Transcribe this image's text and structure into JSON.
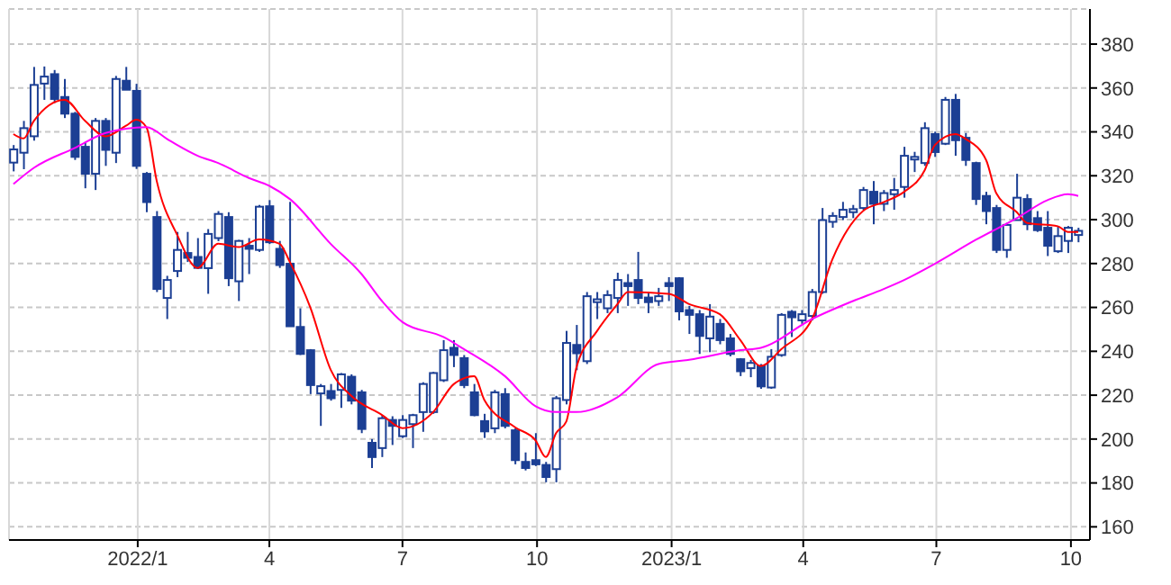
{
  "chart_data": {
    "type": "candlestick",
    "color": "#1c3f94",
    "grid": true,
    "xlim": [
      "2021-10-05",
      "2023-10-14"
    ],
    "xticks": [
      {
        "value": "2022-01-01",
        "label": "2022/1"
      },
      {
        "value": "2022-04-01",
        "label": "4"
      },
      {
        "value": "2022-07-01",
        "label": "7"
      },
      {
        "value": "2022-10-01",
        "label": "10"
      },
      {
        "value": "2023-01-01",
        "label": "2023/1"
      },
      {
        "value": "2023-04-01",
        "label": "4"
      },
      {
        "value": "2023-07-01",
        "label": "7"
      },
      {
        "value": "2023-10-01",
        "label": "10"
      }
    ],
    "ylim": [
      154,
      396
    ],
    "yticks": [
      160,
      180,
      200,
      220,
      240,
      260,
      280,
      300,
      320,
      340,
      360,
      380
    ],
    "x": [
      "2021-10-08",
      "2021-10-15",
      "2021-10-22",
      "2021-10-29",
      "2021-11-05",
      "2021-11-12",
      "2021-11-19",
      "2021-11-26",
      "2021-12-03",
      "2021-12-10",
      "2021-12-17",
      "2021-12-24",
      "2021-12-31",
      "2022-01-07",
      "2022-01-14",
      "2022-01-21",
      "2022-01-28",
      "2022-02-04",
      "2022-02-11",
      "2022-02-18",
      "2022-02-25",
      "2022-03-04",
      "2022-03-11",
      "2022-03-18",
      "2022-03-25",
      "2022-04-01",
      "2022-04-08",
      "2022-04-15",
      "2022-04-22",
      "2022-04-29",
      "2022-05-06",
      "2022-05-13",
      "2022-05-20",
      "2022-05-27",
      "2022-06-03",
      "2022-06-10",
      "2022-06-17",
      "2022-06-24",
      "2022-07-01",
      "2022-07-08",
      "2022-07-15",
      "2022-07-22",
      "2022-07-29",
      "2022-08-05",
      "2022-08-12",
      "2022-08-19",
      "2022-08-26",
      "2022-09-02",
      "2022-09-09",
      "2022-09-16",
      "2022-09-23",
      "2022-09-30",
      "2022-10-07",
      "2022-10-14",
      "2022-10-21",
      "2022-10-28",
      "2022-11-04",
      "2022-11-11",
      "2022-11-18",
      "2022-11-25",
      "2022-12-02",
      "2022-12-09",
      "2022-12-16",
      "2022-12-23",
      "2022-12-30",
      "2023-01-06",
      "2023-01-13",
      "2023-01-20",
      "2023-01-27",
      "2023-02-03",
      "2023-02-10",
      "2023-02-17",
      "2023-02-24",
      "2023-03-03",
      "2023-03-10",
      "2023-03-17",
      "2023-03-24",
      "2023-03-31",
      "2023-04-07",
      "2023-04-14",
      "2023-04-21",
      "2023-04-28",
      "2023-05-05",
      "2023-05-12",
      "2023-05-19",
      "2023-05-26",
      "2023-06-02",
      "2023-06-09",
      "2023-06-16",
      "2023-06-23",
      "2023-06-30",
      "2023-07-07",
      "2023-07-14",
      "2023-07-21",
      "2023-07-28",
      "2023-08-04",
      "2023-08-11",
      "2023-08-18",
      "2023-08-25",
      "2023-09-01",
      "2023-09-08",
      "2023-09-15",
      "2023-09-22",
      "2023-09-29",
      "2023-10-06"
    ],
    "ohlc": [
      [
        326,
        334,
        322,
        332
      ],
      [
        330.5,
        345,
        323,
        341.7
      ],
      [
        338,
        369.6,
        336,
        361.4
      ],
      [
        362,
        369.8,
        354.6,
        365.2
      ],
      [
        366.3,
        368.2,
        353.2,
        355
      ],
      [
        355.9,
        364.1,
        346.3,
        348.3
      ],
      [
        348.3,
        349.1,
        327.2,
        328.6
      ],
      [
        333.2,
        335.4,
        314.3,
        320.9
      ],
      [
        320.9,
        346.3,
        313.5,
        345
      ],
      [
        345,
        346.3,
        324.5,
        331.8
      ],
      [
        330.5,
        365.5,
        325.8,
        364.1
      ],
      [
        363.3,
        369.6,
        359.2,
        359.2
      ],
      [
        358.7,
        361.9,
        323.1,
        324.5
      ],
      [
        320.9,
        321.7,
        303.4,
        308
      ],
      [
        301.2,
        303.9,
        267,
        268.4
      ],
      [
        264.3,
        274.4,
        254.7,
        272.5
      ],
      [
        276.6,
        294.4,
        273.8,
        286.2
      ],
      [
        284.8,
        294.4,
        280.7,
        282.6
      ],
      [
        283,
        291.6,
        277.5,
        278
      ],
      [
        277.9,
        295.7,
        266.2,
        293.5
      ],
      [
        291.6,
        303.9,
        290.2,
        302.6
      ],
      [
        301.2,
        303.4,
        269.7,
        273.3
      ],
      [
        271.9,
        290.8,
        262.9,
        290.3
      ],
      [
        288.1,
        291.6,
        275.2,
        286.7
      ],
      [
        286.2,
        306.7,
        285.3,
        305.9
      ],
      [
        306.1,
        308.9,
        288.9,
        289.7
      ],
      [
        286.7,
        290.3,
        278,
        279.3
      ],
      [
        279.9,
        308.1,
        251.4,
        251.4
      ],
      [
        251.1,
        259.6,
        238.3,
        238.8
      ],
      [
        240.5,
        241,
        220.5,
        224.6
      ],
      [
        220.8,
        225.1,
        206,
        224.1
      ],
      [
        221.9,
        225.1,
        217.5,
        218.6
      ],
      [
        222.4,
        230.1,
        214.2,
        229.5
      ],
      [
        228.4,
        229.5,
        215.8,
        217.5
      ],
      [
        221.3,
        222.4,
        202.7,
        204.6
      ],
      [
        198.3,
        200,
        186.8,
        191.8
      ],
      [
        195.9,
        210.9,
        191.8,
        209.5
      ],
      [
        208.7,
        210.4,
        197.3,
        206
      ],
      [
        201.3,
        210.9,
        200.5,
        208.7
      ],
      [
        206.8,
        211.5,
        195.9,
        210.9
      ],
      [
        212.3,
        225.9,
        203.3,
        225.1
      ],
      [
        212.3,
        230.6,
        211.5,
        230.1
      ],
      [
        226.8,
        245.1,
        226,
        240.5
      ],
      [
        241.6,
        245.1,
        232.8,
        238.3
      ],
      [
        236.9,
        238.3,
        223.2,
        224.6
      ],
      [
        221.3,
        225.1,
        210.4,
        210.9
      ],
      [
        208.2,
        211.5,
        200.5,
        203.5
      ],
      [
        204.9,
        222.4,
        202.7,
        221.3
      ],
      [
        220.5,
        223.2,
        204.9,
        206
      ],
      [
        204,
        204.9,
        188.5,
        190.4
      ],
      [
        189.6,
        193.9,
        185.7,
        186.8
      ],
      [
        190.4,
        202.7,
        187.7,
        188.5
      ],
      [
        188.2,
        189.6,
        180.3,
        182.7
      ],
      [
        186.3,
        219.7,
        180.3,
        218.6
      ],
      [
        217.8,
        249.3,
        215.8,
        243.8
      ],
      [
        242.9,
        252,
        231.4,
        239.1
      ],
      [
        235.5,
        267,
        234.2,
        265.1
      ],
      [
        262.4,
        267,
        254.7,
        263.7
      ],
      [
        259.6,
        267.8,
        257.4,
        265.6
      ],
      [
        264.3,
        275.8,
        257.4,
        272.5
      ],
      [
        271.1,
        275.2,
        260.7,
        269.7
      ],
      [
        272.5,
        285.3,
        261.5,
        264.3
      ],
      [
        264.5,
        267,
        257.4,
        262.4
      ],
      [
        262.9,
        268.9,
        260.7,
        265.1
      ],
      [
        271.1,
        273.8,
        262.9,
        269.7
      ],
      [
        273.3,
        273.8,
        254.1,
        258.2
      ],
      [
        258.8,
        260.7,
        247.9,
        256.6
      ],
      [
        256.9,
        258.8,
        238.8,
        247
      ],
      [
        245.9,
        261.5,
        239.6,
        255.8
      ],
      [
        252.5,
        254.7,
        243.2,
        245.1
      ],
      [
        245.9,
        247.9,
        237.7,
        238.8
      ],
      [
        236.4,
        236.9,
        228.7,
        230.9
      ],
      [
        232.3,
        236.1,
        228.2,
        234.7
      ],
      [
        233.3,
        234.2,
        222.9,
        224
      ],
      [
        223.5,
        241,
        222.9,
        237.5
      ],
      [
        238.3,
        257.4,
        237.5,
        256.6
      ],
      [
        258,
        258.8,
        246.5,
        255.5
      ],
      [
        254.1,
        258.8,
        252.5,
        256.9
      ],
      [
        256.1,
        268.4,
        254.1,
        267
      ],
      [
        267,
        305.3,
        266.2,
        299.8
      ],
      [
        299,
        303.4,
        296.3,
        301.7
      ],
      [
        301.2,
        308.1,
        299.8,
        304.5
      ],
      [
        303.4,
        306.7,
        300.7,
        304.8
      ],
      [
        305.3,
        314.9,
        304.5,
        313.5
      ],
      [
        312.7,
        317.6,
        297.9,
        307.2
      ],
      [
        307.2,
        313.5,
        303.9,
        312.1
      ],
      [
        311.6,
        319,
        304.5,
        313.5
      ],
      [
        314.9,
        333.2,
        310,
        329.1
      ],
      [
        327.4,
        330.9,
        321.7,
        328.6
      ],
      [
        325.8,
        344.4,
        324.5,
        341.7
      ],
      [
        339,
        340.1,
        328.6,
        330.8
      ],
      [
        334.6,
        355.9,
        334,
        354.6
      ],
      [
        354.6,
        357.3,
        329.1,
        336.2
      ],
      [
        337.3,
        339.5,
        324.5,
        327.2
      ],
      [
        325.8,
        326.4,
        306.7,
        309.4
      ],
      [
        310.8,
        312.7,
        297.9,
        303.9
      ],
      [
        305.3,
        306.7,
        284.8,
        286.2
      ],
      [
        286.2,
        298.5,
        282.6,
        297.6
      ],
      [
        299.8,
        320.9,
        299.8,
        310
      ],
      [
        309.4,
        311.6,
        295.2,
        297.9
      ],
      [
        300.7,
        303.9,
        294.4,
        295.2
      ],
      [
        296.3,
        303.9,
        283.4,
        288.1
      ],
      [
        285.6,
        297.1,
        284.8,
        292.5
      ],
      [
        290.3,
        297.1,
        284.8,
        296.3
      ],
      [
        293,
        296.3,
        289.7,
        294.9
      ]
    ],
    "series": [
      {
        "type": "line",
        "color": "#ff0000",
        "x": [
          "2021-10-08",
          "2021-10-15",
          "2021-10-22",
          "2021-11-12",
          "2021-11-26",
          "2021-12-10",
          "2021-12-24",
          "2021-12-31",
          "2022-01-07",
          "2022-01-14",
          "2022-01-28",
          "2022-02-11",
          "2022-02-25",
          "2022-03-11",
          "2022-03-25",
          "2022-04-08",
          "2022-04-15",
          "2022-04-29",
          "2022-05-13",
          "2022-05-27",
          "2022-06-17",
          "2022-07-01",
          "2022-07-22",
          "2022-08-05",
          "2022-08-19",
          "2022-08-26",
          "2022-09-16",
          "2022-09-30",
          "2022-10-07",
          "2022-10-14",
          "2022-10-21",
          "2022-10-28",
          "2022-11-11",
          "2022-11-25",
          "2022-12-02",
          "2022-12-30",
          "2023-01-13",
          "2023-02-03",
          "2023-02-17",
          "2023-03-03",
          "2023-03-17",
          "2023-04-07",
          "2023-04-21",
          "2023-05-12",
          "2023-05-26",
          "2023-06-09",
          "2023-06-23",
          "2023-06-30",
          "2023-07-14",
          "2023-07-21",
          "2023-08-04",
          "2023-08-11",
          "2023-08-25",
          "2023-09-01",
          "2023-09-22",
          "2023-09-29",
          "2023-10-06"
        ],
        "values": [
          339,
          337,
          345,
          354.6,
          345,
          338,
          342.8,
          345.5,
          342,
          317.6,
          293,
          278,
          289,
          287.5,
          291,
          289,
          280.7,
          260,
          231.5,
          219.7,
          211,
          205,
          212.3,
          225,
          228.7,
          217.8,
          205.4,
          199.4,
          191.8,
          202.7,
          208,
          232.8,
          249.2,
          261.5,
          267,
          266.2,
          261.5,
          256.9,
          245.1,
          233.3,
          241,
          254.7,
          282,
          304,
          308,
          312.7,
          322.5,
          334,
          339,
          336.8,
          327.2,
          312,
          303.4,
          298.5,
          297,
          294.4,
          294.4
        ]
      },
      {
        "type": "line",
        "color": "#ff00ff",
        "x": [
          "2021-10-08",
          "2021-10-22",
          "2021-11-19",
          "2021-12-10",
          "2022-01-07",
          "2022-01-21",
          "2022-01-28",
          "2022-02-11",
          "2022-02-25",
          "2022-03-18",
          "2022-04-01",
          "2022-04-15",
          "2022-05-13",
          "2022-06-03",
          "2022-06-17",
          "2022-07-01",
          "2022-07-29",
          "2022-08-12",
          "2022-09-09",
          "2022-09-30",
          "2022-10-14",
          "2022-10-28",
          "2022-11-25",
          "2022-12-23",
          "2023-01-13",
          "2023-02-17",
          "2023-03-03",
          "2023-04-07",
          "2023-05-05",
          "2023-05-26",
          "2023-06-09",
          "2023-06-30",
          "2023-07-28",
          "2023-08-25",
          "2023-09-15",
          "2023-09-29",
          "2023-10-06"
        ],
        "values": [
          316.2,
          323.6,
          332.7,
          339.5,
          342.2,
          336.8,
          334,
          329.1,
          325.8,
          319,
          315.4,
          309.4,
          288.9,
          275.2,
          262.9,
          253.3,
          246.5,
          241,
          228.7,
          215,
          212.3,
          212.3,
          219.1,
          234.2,
          236.1,
          240.5,
          241.6,
          254.7,
          262.9,
          268.4,
          272.5,
          279.9,
          290.8,
          300.7,
          308.9,
          311.6,
          310.8
        ]
      }
    ]
  }
}
